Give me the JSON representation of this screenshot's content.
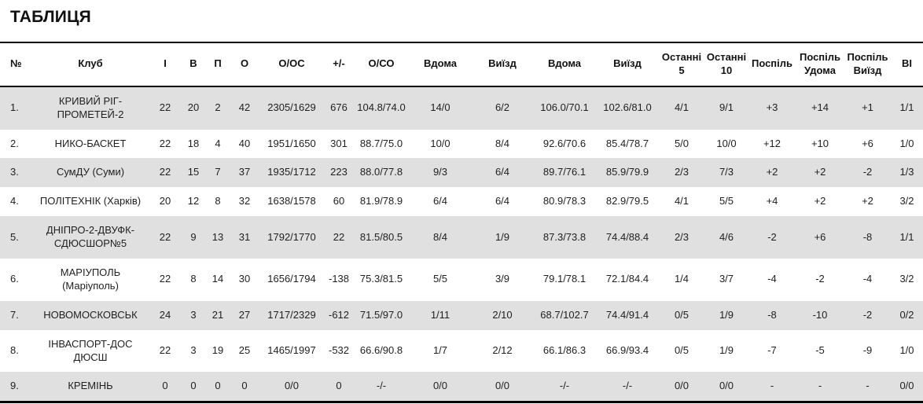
{
  "page": {
    "title": "ТАБЛИЦЯ"
  },
  "colors": {
    "row_stripe": "#e0e0e0",
    "row_plain": "#ffffff",
    "rule_line": "#000000",
    "text": "#1f1f1f"
  },
  "table": {
    "columns": [
      "№",
      "Клуб",
      "І",
      "В",
      "П",
      "О",
      "О/ОС",
      "+/-",
      "О/СО",
      "Вдома",
      "Виїзд",
      "Вдома",
      "Виїзд",
      "Останні\n5",
      "Останні\n10",
      "Поспіль",
      "Поспіль\nУдома",
      "Поспіль\nВиїзд",
      "ВІ"
    ],
    "rows": [
      [
        "1.",
        "КРИВИЙ РІГ-\nПРОМЕТЕЙ-2",
        "22",
        "20",
        "2",
        "42",
        "2305/1629",
        "676",
        "104.8/74.0",
        "14/0",
        "6/2",
        "106.0/70.1",
        "102.6/81.0",
        "4/1",
        "9/1",
        "+3",
        "+14",
        "+1",
        "1/1"
      ],
      [
        "2.",
        "НИКО-БАСКЕТ",
        "22",
        "18",
        "4",
        "40",
        "1951/1650",
        "301",
        "88.7/75.0",
        "10/0",
        "8/4",
        "92.6/70.6",
        "85.4/78.7",
        "5/0",
        "10/0",
        "+12",
        "+10",
        "+6",
        "1/0"
      ],
      [
        "3.",
        "СумДУ (Суми)",
        "22",
        "15",
        "7",
        "37",
        "1935/1712",
        "223",
        "88.0/77.8",
        "9/3",
        "6/4",
        "89.7/76.1",
        "85.9/79.9",
        "2/3",
        "7/3",
        "+2",
        "+2",
        "-2",
        "1/3"
      ],
      [
        "4.",
        "ПОЛІТЕХНІК (Харків)",
        "20",
        "12",
        "8",
        "32",
        "1638/1578",
        "60",
        "81.9/78.9",
        "6/4",
        "6/4",
        "80.9/78.3",
        "82.9/79.5",
        "4/1",
        "5/5",
        "+4",
        "+2",
        "+2",
        "3/2"
      ],
      [
        "5.",
        "ДНІПРО-2-ДВУФК-\nСДЮСШОР№5",
        "22",
        "9",
        "13",
        "31",
        "1792/1770",
        "22",
        "81.5/80.5",
        "8/4",
        "1/9",
        "87.3/73.8",
        "74.4/88.4",
        "2/3",
        "4/6",
        "-2",
        "+6",
        "-8",
        "1/1"
      ],
      [
        "6.",
        "МАРІУПОЛЬ\n(Маріуполь)",
        "22",
        "8",
        "14",
        "30",
        "1656/1794",
        "-138",
        "75.3/81.5",
        "5/5",
        "3/9",
        "79.1/78.1",
        "72.1/84.4",
        "1/4",
        "3/7",
        "-4",
        "-2",
        "-4",
        "3/2"
      ],
      [
        "7.",
        "НОВОМОСКОВСЬК",
        "24",
        "3",
        "21",
        "27",
        "1717/2329",
        "-612",
        "71.5/97.0",
        "1/11",
        "2/10",
        "68.7/102.7",
        "74.4/91.4",
        "0/5",
        "1/9",
        "-8",
        "-10",
        "-2",
        "0/2"
      ],
      [
        "8.",
        "ІНВАСПОРТ-ДОС\nДЮСШ",
        "22",
        "3",
        "19",
        "25",
        "1465/1997",
        "-532",
        "66.6/90.8",
        "1/7",
        "2/12",
        "66.1/86.3",
        "66.9/93.4",
        "0/5",
        "1/9",
        "-7",
        "-5",
        "-9",
        "1/0"
      ],
      [
        "9.",
        "КРЕМІНЬ",
        "0",
        "0",
        "0",
        "0",
        "0/0",
        "0",
        "-/-",
        "0/0",
        "0/0",
        "-/-",
        "-/-",
        "0/0",
        "0/0",
        "-",
        "-",
        "-",
        "0/0"
      ]
    ]
  }
}
